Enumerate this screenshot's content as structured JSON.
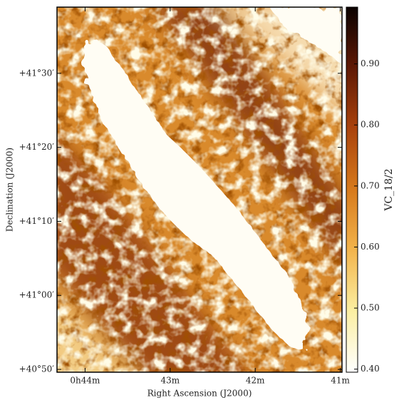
{
  "chart_data": {
    "type": "image",
    "xlabel": "Right Ascension (J2000)",
    "ylabel": "Declination (J2000)",
    "xlim": [
      44.33,
      40.98
    ],
    "xticks": [
      {
        "value": 44,
        "label": "0h44m"
      },
      {
        "value": 43,
        "label": "43m"
      },
      {
        "value": 42,
        "label": "42m"
      },
      {
        "value": 41,
        "label": "41m"
      }
    ],
    "ylim": [
      40.827,
      41.649
    ],
    "yticks": [
      {
        "value": 40.8333,
        "label": "+40°50′"
      },
      {
        "value": 41.0,
        "label": "+41°00′"
      },
      {
        "value": 41.1667,
        "label": "+41°10′"
      },
      {
        "value": 41.3333,
        "label": "+41°20′"
      },
      {
        "value": 41.5,
        "label": "+41°30′"
      }
    ],
    "colorbar_label": "VC_18/2",
    "clim": [
      0.395,
      0.993
    ],
    "cticks": [
      {
        "value": 0.4,
        "label": "0.40"
      },
      {
        "value": 0.5,
        "label": "0.50"
      },
      {
        "value": 0.6,
        "label": "0.60"
      },
      {
        "value": 0.7,
        "label": "0.70"
      },
      {
        "value": 0.8,
        "label": "0.80"
      },
      {
        "value": 0.9,
        "label": "0.90"
      }
    ]
  }
}
